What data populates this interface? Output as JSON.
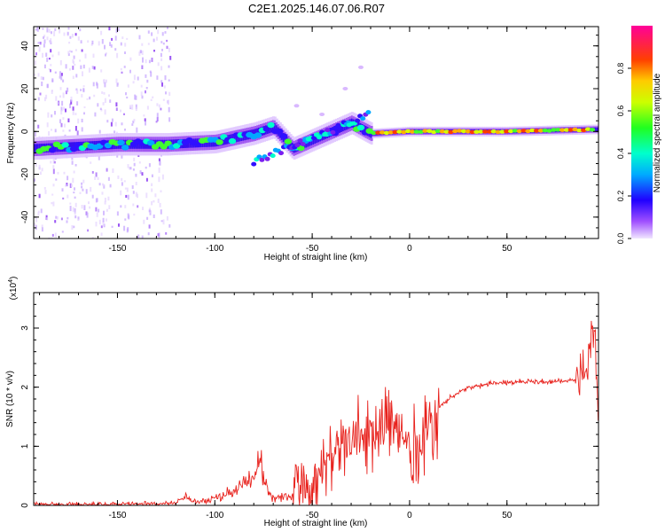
{
  "page": {
    "title": "C2E1.2025.146.07.06.R07"
  },
  "chart_data": [
    {
      "type": "heatmap",
      "title": "C2E1.2025.146.07.06.R07",
      "xlabel": "Height of straight line (km)",
      "ylabel": "Frequency (Hz)",
      "xlim": [
        -193,
        97
      ],
      "ylim": [
        -50,
        49
      ],
      "x_ticks": [
        -150,
        -100,
        -50,
        0,
        50
      ],
      "y_ticks": [
        -40,
        -20,
        0,
        20,
        40
      ],
      "colorbar": {
        "label": "Normalized spectral amplitude",
        "range": [
          0.0,
          1.0
        ],
        "ticks": [
          0.0,
          0.2,
          0.4,
          0.6,
          0.8
        ]
      },
      "ridge": {
        "description_points_x": [
          -193,
          -150,
          -125,
          -100,
          -80,
          -70,
          -60,
          -50,
          -40,
          -30,
          -20,
          0,
          50,
          97
        ],
        "description_points_y": [
          -8,
          -6,
          -6,
          -5,
          -1,
          2,
          -8,
          -4,
          0,
          4,
          -1,
          0,
          0,
          1
        ]
      }
    },
    {
      "type": "line",
      "xlabel": "Height of straight line (km)",
      "ylabel": "SNR (10 * v/v)",
      "y_multiplier_label": "(x10",
      "y_multiplier_exp": "4",
      "xlim": [
        -193,
        97
      ],
      "ylim": [
        0,
        3.6
      ],
      "x_ticks": [
        -150,
        -100,
        -50,
        0,
        50
      ],
      "y_ticks": [
        0,
        1,
        2,
        3
      ],
      "series": [
        {
          "color": "#e8221d",
          "x": [
            -193,
            -150,
            -120,
            -115,
            -110,
            -100,
            -90,
            -80,
            -77,
            -75,
            -70,
            -60,
            -50,
            -45,
            -40,
            -35,
            -30,
            -25,
            -20,
            -15,
            -10,
            -5,
            0,
            5,
            10,
            15,
            20,
            25,
            30,
            40,
            50,
            60,
            70,
            80,
            85,
            90,
            92,
            94,
            97
          ],
          "y": [
            0.02,
            0.02,
            0.04,
            0.15,
            0.05,
            0.12,
            0.25,
            0.45,
            0.85,
            0.4,
            0.1,
            0.2,
            0.35,
            0.6,
            0.8,
            1.0,
            1.1,
            1.15,
            1.3,
            1.45,
            1.3,
            1.1,
            1.05,
            1.0,
            1.45,
            1.65,
            1.8,
            1.92,
            2.0,
            2.05,
            2.08,
            2.1,
            2.1,
            2.1,
            2.12,
            2.15,
            2.4,
            3.2,
            1.6
          ]
        }
      ]
    }
  ]
}
